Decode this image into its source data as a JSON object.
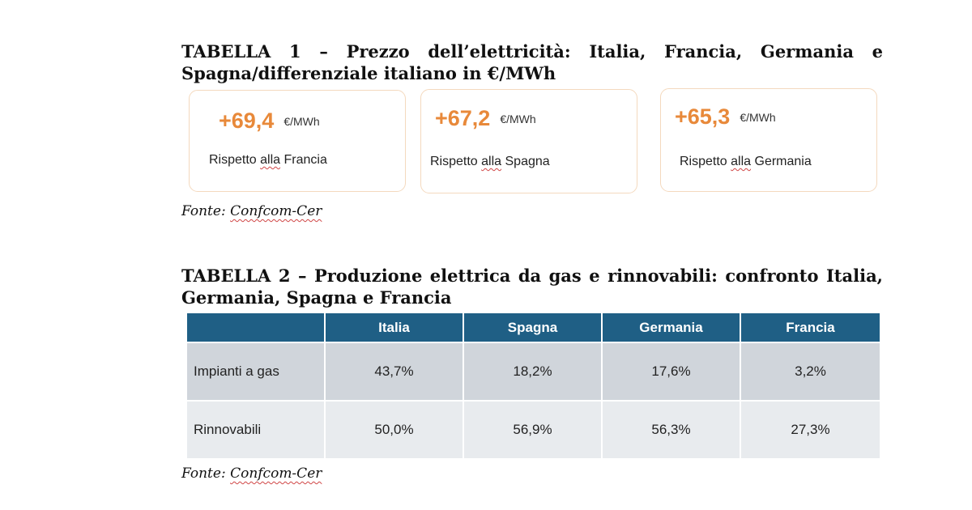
{
  "table1": {
    "heading": "TABELLA 1 – Prezzo dell’elettricità: Italia, Francia, Germania e Spagna/differenziale italiano in €/MWh",
    "cards": [
      {
        "value": "+69,4",
        "unit": "€/MWh",
        "label_prefix": "Rispetto ",
        "label_mid": "alla",
        "label_suffix": " Francia"
      },
      {
        "value": "+67,2",
        "unit": "€/MWh",
        "label_prefix": "Rispetto ",
        "label_mid": "alla",
        "label_suffix": " Spagna"
      },
      {
        "value": "+65,3",
        "unit": "€/MWh",
        "label_prefix": "Rispetto ",
        "label_mid": "alla",
        "label_suffix": " Germania"
      }
    ],
    "source_prefix": "Fonte: ",
    "source_name": "Confcom-Cer"
  },
  "table2": {
    "heading": "TABELLA 2 – Produzione elettrica da gas e rinnovabili: confronto Italia, Germania, Spagna e Francia",
    "columns": [
      "",
      "Italia",
      "Spagna",
      "Germania",
      "Francia"
    ],
    "rows": [
      {
        "label": "Impianti a gas",
        "values": [
          "43,7%",
          "18,2%",
          "17,6%",
          "3,2%"
        ]
      },
      {
        "label": "Rinnovabili",
        "values": [
          "50,0%",
          "56,9%",
          "56,3%",
          "27,3%"
        ]
      }
    ],
    "source_prefix": "Fonte: ",
    "source_name": "Confcom-Cer"
  },
  "colors": {
    "accent_orange": "#e8893a",
    "header_blue": "#1f5f85",
    "row_gray_dark": "#d0d5db",
    "row_gray_light": "#e8ebee"
  }
}
